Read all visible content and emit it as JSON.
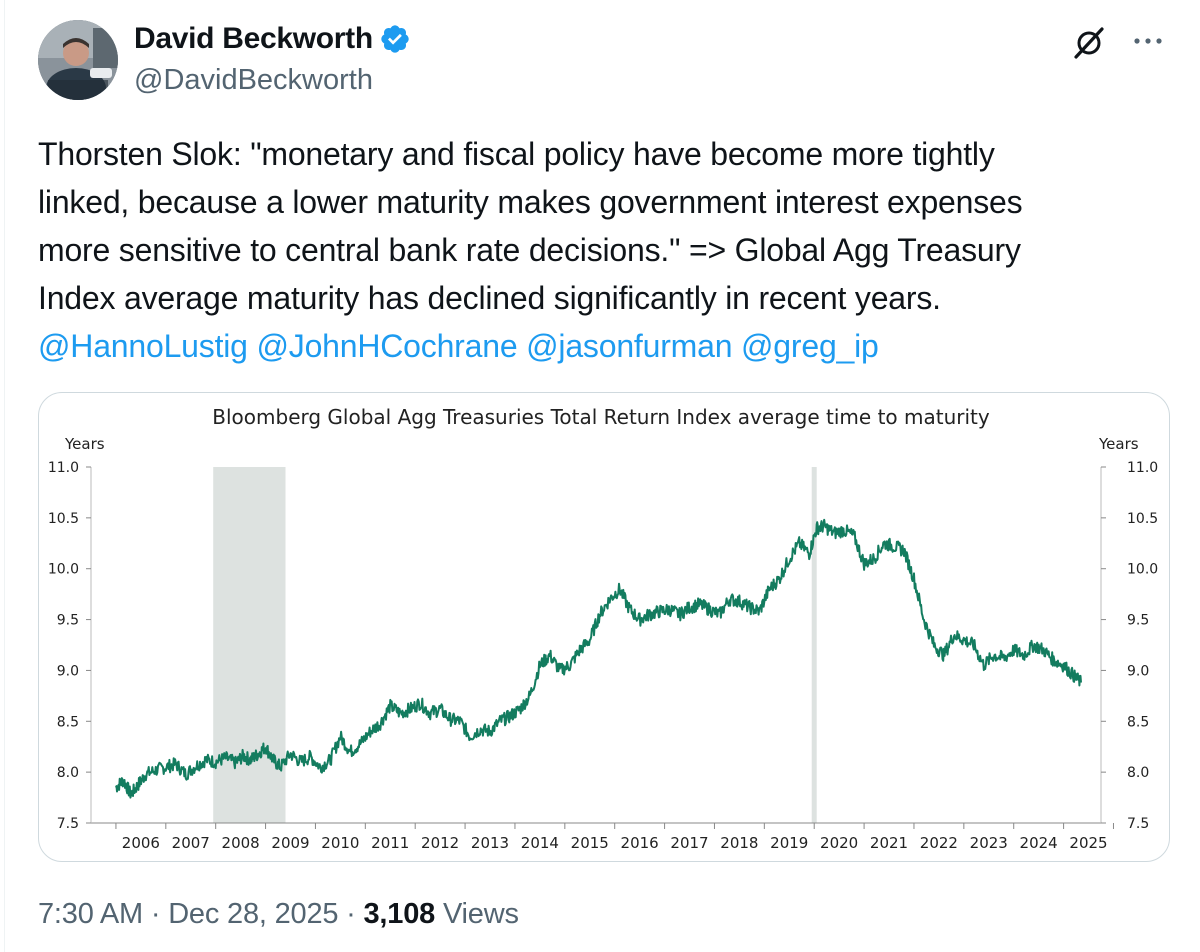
{
  "author": {
    "name": "David Beckworth",
    "handle": "@DavidBeckworth"
  },
  "icons": {
    "avatar": "avatar-photo",
    "verified": "verified-badge-icon",
    "grok": "grok-icon",
    "more": "more-icon"
  },
  "colors": {
    "mention": "#1d9bf0",
    "verified": "#1d9bf0",
    "series": "#137c5f",
    "recession_shade": "#dde2e0"
  },
  "tweet": {
    "text_lines": [
      "Thorsten Slok: \"monetary and fiscal policy have become more tightly",
      "linked, because a lower maturity makes government interest expenses",
      "more sensitive to central bank rate decisions.\" => Global Agg Treasury",
      "Index average maturity has declined significantly in recent years."
    ],
    "mentions": [
      "@HannoLustig",
      "@JohnHCochrane",
      "@jasonfurman",
      "@greg_ip"
    ]
  },
  "meta": {
    "time": "7:30 AM",
    "separator": "·",
    "date": "Dec 28, 2025",
    "views_count": "3,108",
    "views_label": "Views"
  },
  "chart_data": {
    "type": "line",
    "title": "Bloomberg Global Agg Treasuries Total Return Index average time to maturity",
    "ylabel_left": "Years",
    "ylabel_right": "Years",
    "ylim": [
      7.5,
      11.0
    ],
    "yticks": [
      "11.0",
      "10.5",
      "10.0",
      "9.5",
      "9.0",
      "8.5",
      "8.0",
      "7.5"
    ],
    "xlim": [
      2005.5,
      2025.75
    ],
    "xticks": [
      "2006",
      "2007",
      "2008",
      "2009",
      "2010",
      "2011",
      "2012",
      "2013",
      "2014",
      "2015",
      "2016",
      "2017",
      "2018",
      "2019",
      "2020",
      "2021",
      "2022",
      "2023",
      "2024",
      "2025"
    ],
    "shaded_periods": [
      [
        2007.95,
        2009.4
      ],
      [
        2019.95,
        2020.05
      ]
    ],
    "series": [
      {
        "values_x": [
          2006.0,
          2006.15,
          2006.3,
          2006.45,
          2006.6,
          2006.8,
          2007.0,
          2007.2,
          2007.4,
          2007.6,
          2007.8,
          2008.0,
          2008.2,
          2008.4,
          2008.55,
          2008.7,
          2008.85,
          2009.0,
          2009.15,
          2009.3,
          2009.5,
          2009.7,
          2009.9,
          2010.1,
          2010.3,
          2010.5,
          2010.7,
          2010.9,
          2011.1,
          2011.3,
          2011.5,
          2011.7,
          2011.9,
          2012.1,
          2012.3,
          2012.5,
          2012.7,
          2012.9,
          2013.1,
          2013.3,
          2013.5,
          2013.7,
          2013.9,
          2014.1,
          2014.3,
          2014.5,
          2014.7,
          2014.9,
          2015.1,
          2015.3,
          2015.5,
          2015.7,
          2015.9,
          2016.1,
          2016.3,
          2016.5,
          2016.7,
          2016.9,
          2017.1,
          2017.3,
          2017.5,
          2017.7,
          2017.9,
          2018.1,
          2018.3,
          2018.5,
          2018.7,
          2018.9,
          2019.1,
          2019.3,
          2019.5,
          2019.7,
          2019.9,
          2020.05,
          2020.2,
          2020.4,
          2020.6,
          2020.8,
          2021.0,
          2021.2,
          2021.4,
          2021.6,
          2021.8,
          2022.0,
          2022.2,
          2022.4,
          2022.6,
          2022.8,
          2023.0,
          2023.2,
          2023.4,
          2023.6,
          2023.8,
          2024.0,
          2024.2,
          2024.4,
          2024.6,
          2024.8,
          2025.0,
          2025.2,
          2025.35
        ],
        "values_y": [
          7.85,
          7.92,
          7.78,
          7.88,
          7.98,
          8.02,
          8.05,
          8.08,
          7.98,
          8.06,
          8.12,
          8.1,
          8.14,
          8.09,
          8.16,
          8.12,
          8.18,
          8.25,
          8.12,
          8.05,
          8.18,
          8.1,
          8.15,
          8.05,
          8.12,
          8.35,
          8.2,
          8.28,
          8.4,
          8.48,
          8.65,
          8.58,
          8.62,
          8.68,
          8.58,
          8.62,
          8.52,
          8.5,
          8.35,
          8.42,
          8.4,
          8.5,
          8.55,
          8.62,
          8.75,
          9.05,
          9.15,
          9.0,
          9.05,
          9.2,
          9.3,
          9.55,
          9.7,
          9.8,
          9.6,
          9.5,
          9.55,
          9.58,
          9.6,
          9.55,
          9.62,
          9.65,
          9.6,
          9.55,
          9.7,
          9.68,
          9.62,
          9.58,
          9.8,
          9.9,
          10.1,
          10.25,
          10.15,
          10.4,
          10.42,
          10.35,
          10.38,
          10.32,
          10.05,
          10.1,
          10.25,
          10.22,
          10.18,
          9.9,
          9.5,
          9.25,
          9.15,
          9.35,
          9.3,
          9.25,
          9.05,
          9.15,
          9.12,
          9.2,
          9.15,
          9.25,
          9.2,
          9.1,
          9.05,
          8.95,
          8.88
        ]
      }
    ]
  }
}
